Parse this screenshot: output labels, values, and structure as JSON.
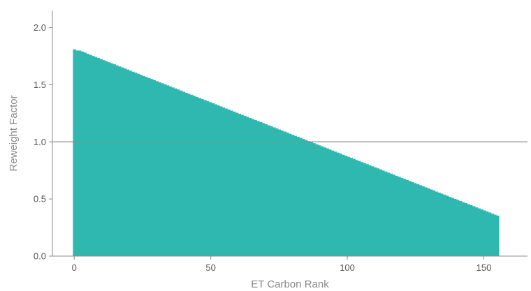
{
  "chart_data": {
    "type": "bar",
    "title": "",
    "xlabel": "ET Carbon Rank",
    "ylabel": "Reweight Factor",
    "xlim": [
      -8,
      166
    ],
    "ylim": [
      0,
      2.15
    ],
    "x_ticks": [
      0,
      50,
      100,
      150
    ],
    "y_ticks": [
      0.0,
      0.5,
      1.0,
      1.5,
      2.0
    ],
    "x_tick_labels": [
      "0",
      "50",
      "100",
      "150"
    ],
    "y_tick_labels": [
      "0.0",
      "0.5",
      "1.0",
      "1.5",
      "2.0"
    ],
    "bar_color": "#2fb8b0",
    "reference_line": {
      "y": 1.0,
      "color": "#8c8c8c"
    },
    "grid": false,
    "legend": "none",
    "series": [
      {
        "x_start": 0,
        "x_end": 155,
        "values": [
          1.81,
          1.8,
          1.799,
          1.79,
          1.781,
          1.771,
          1.761,
          1.752,
          1.743,
          1.734,
          1.725,
          1.715,
          1.706,
          1.697,
          1.688,
          1.679,
          1.669,
          1.66,
          1.651,
          1.642,
          1.633,
          1.623,
          1.614,
          1.605,
          1.596,
          1.587,
          1.577,
          1.568,
          1.559,
          1.55,
          1.541,
          1.531,
          1.522,
          1.513,
          1.504,
          1.495,
          1.485,
          1.476,
          1.467,
          1.458,
          1.449,
          1.439,
          1.43,
          1.421,
          1.412,
          1.403,
          1.393,
          1.384,
          1.375,
          1.366,
          1.357,
          1.347,
          1.338,
          1.329,
          1.32,
          1.311,
          1.301,
          1.292,
          1.283,
          1.274,
          1.265,
          1.255,
          1.246,
          1.237,
          1.228,
          1.219,
          1.209,
          1.2,
          1.191,
          1.182,
          1.173,
          1.163,
          1.154,
          1.145,
          1.136,
          1.127,
          1.117,
          1.108,
          1.099,
          1.09,
          1.081,
          1.071,
          1.062,
          1.053,
          1.044,
          1.035,
          1.025,
          1.016,
          1.007,
          0.998,
          0.989,
          0.979,
          0.97,
          0.961,
          0.952,
          0.943,
          0.933,
          0.924,
          0.915,
          0.906,
          0.897,
          0.887,
          0.878,
          0.869,
          0.86,
          0.851,
          0.841,
          0.832,
          0.823,
          0.814,
          0.805,
          0.795,
          0.786,
          0.777,
          0.768,
          0.759,
          0.749,
          0.74,
          0.731,
          0.722,
          0.713,
          0.703,
          0.694,
          0.685,
          0.676,
          0.667,
          0.657,
          0.648,
          0.639,
          0.63,
          0.621,
          0.611,
          0.602,
          0.593,
          0.584,
          0.575,
          0.565,
          0.556,
          0.547,
          0.538,
          0.529,
          0.519,
          0.51,
          0.501,
          0.492,
          0.483,
          0.473,
          0.464,
          0.455,
          0.446,
          0.437,
          0.427,
          0.418,
          0.409,
          0.4,
          0.391,
          0.382,
          0.372,
          0.363,
          0.354
        ]
      }
    ]
  }
}
